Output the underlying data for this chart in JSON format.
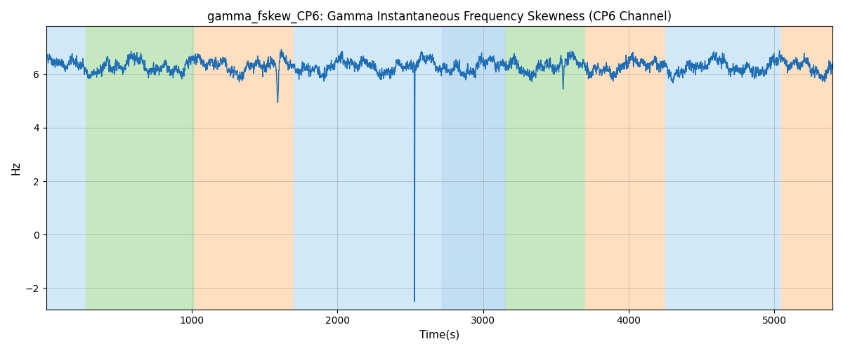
{
  "title": "gamma_fskew_CP6: Gamma Instantaneous Frequency Skewness (CP6 Channel)",
  "xlabel": "Time(s)",
  "ylabel": "Hz",
  "xlim": [
    0,
    5400
  ],
  "ylim": [
    -2.8,
    7.8
  ],
  "yticks": [
    -2,
    0,
    2,
    4,
    6
  ],
  "xticks": [
    1000,
    2000,
    3000,
    4000,
    5000
  ],
  "background_regions": [
    {
      "xstart": 0,
      "xend": 270,
      "color": "#d0e8f8"
    },
    {
      "xstart": 270,
      "xend": 1020,
      "color": "#c5e8c0"
    },
    {
      "xstart": 1020,
      "xend": 1700,
      "color": "#ffdfc0"
    },
    {
      "xstart": 1700,
      "xend": 2720,
      "color": "#d0e8f8"
    },
    {
      "xstart": 2720,
      "xend": 3150,
      "color": "#d0e8f8"
    },
    {
      "xstart": 3150,
      "xend": 3700,
      "color": "#c5e8c0"
    },
    {
      "xstart": 3700,
      "xend": 4250,
      "color": "#ffdfc0"
    },
    {
      "xstart": 4250,
      "xend": 5050,
      "color": "#d0e8f8"
    },
    {
      "xstart": 5050,
      "xend": 5400,
      "color": "#ffdfc0"
    }
  ],
  "line_color": "#1f6eb5",
  "line_width": 1.0,
  "signal_mean": 6.3,
  "signal_std": 0.18,
  "spike_x": 2530,
  "spike_y": -2.5,
  "seed": 42,
  "n_points": 5400,
  "figsize": [
    12,
    5
  ],
  "dpi": 100,
  "title_fontsize": 12,
  "label_fontsize": 11
}
